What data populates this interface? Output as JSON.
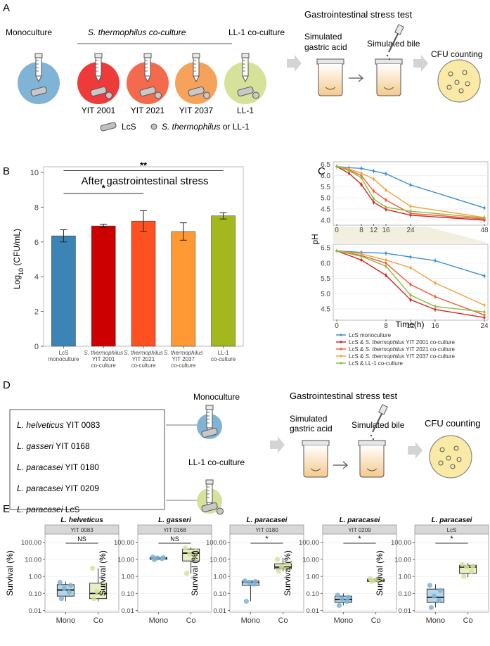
{
  "panel_letters": {
    "A": "A",
    "B": "B",
    "C": "C",
    "D": "D",
    "E": "E"
  },
  "colors": {
    "mono": "#7fb4d6",
    "yit2001": "#ef3a3a",
    "yit2021": "#f36a4c",
    "yit2037": "#f6a25a",
    "ll1": "#d6e29a",
    "bar_lcs": "#3d84b6",
    "bar_2001": "#cc0000",
    "bar_2021": "#ff5022",
    "bar_2037": "#ff9933",
    "bar_ll1": "#a3b81e",
    "line_mono": "#3b8fd0",
    "line_2001": "#d42020",
    "line_2021": "#f05a3a",
    "line_2037": "#f5a13a",
    "line_ll1": "#8cbc3c",
    "strip": "#d8d8d8",
    "arrow": "#c8c8c8"
  },
  "panel_a": {
    "monoculture": "Monoculture",
    "st_coculture": "S. thermophilus co-culture",
    "ll1_coculture": "LL-1 co-culture",
    "strains": [
      "YIT 2001",
      "YIT 2021",
      "YIT 2037",
      "LL-1"
    ],
    "legend_lcs": "LcS",
    "legend_st": "S. thermophilus",
    "legend_or": " or LL-1",
    "gi_test": "Gastrointestinal stress test",
    "gastric1": "Simulated",
    "gastric2": "gastric acid",
    "bile": "Simulated bile",
    "cfu": "CFU counting"
  },
  "chart_data": [
    {
      "type": "bar",
      "panel": "B",
      "title": "After gastrointestinal stress",
      "ylabel": "Log10 (CFU/mL)",
      "ylim": [
        0,
        10
      ],
      "yticks": [
        0,
        2,
        4,
        6,
        8,
        10
      ],
      "categories": [
        [
          "LcS",
          "monoculture"
        ],
        [
          "S. thermophilus",
          "YIT 2001",
          "co-culture"
        ],
        [
          "S. thermophilus",
          "YIT 2021",
          "co-culture"
        ],
        [
          "S. thermophilus",
          "YIT 2037",
          "co-culture"
        ],
        [
          "LL-1",
          "co-culture"
        ]
      ],
      "values": [
        6.35,
        6.92,
        7.2,
        6.6,
        7.5
      ],
      "errors": [
        0.35,
        0.1,
        0.6,
        0.5,
        0.18
      ],
      "significance": [
        {
          "from": 0,
          "to": 2,
          "label": "*"
        },
        {
          "from": 0,
          "to": 4,
          "label": "**"
        }
      ]
    },
    {
      "type": "line",
      "panel": "C",
      "ylabel": "pH",
      "xlabel": "Time(h)",
      "x": [
        0,
        4,
        8,
        12,
        16,
        24,
        48
      ],
      "top_xticks": [
        0,
        8,
        12,
        16,
        24,
        48
      ],
      "top_yticks": [
        "6.5",
        "6.0",
        "5.5",
        "5.0",
        "4.5",
        "4.0"
      ],
      "bottom_xticks": [
        0,
        8,
        12,
        16,
        24
      ],
      "bottom_yticks": [
        "6.5",
        "6.0",
        "5.5",
        "5.0",
        "4.5"
      ],
      "top_ylim": [
        3.9,
        6.55
      ],
      "bottom_ylim": [
        4.2,
        6.55
      ],
      "series": [
        {
          "name": "LcS monoculture",
          "values": [
            6.4,
            6.35,
            6.32,
            6.2,
            6.08,
            5.58,
            4.55
          ]
        },
        {
          "name": "LcS & S. thermophilus YIT 2001 co-culture",
          "values": [
            6.4,
            6.1,
            5.6,
            4.8,
            4.48,
            4.22,
            4.0
          ]
        },
        {
          "name": "LcS & S. thermophilus YIT 2021 co-culture",
          "values": [
            6.4,
            6.25,
            6.0,
            5.3,
            4.9,
            4.3,
            4.05
          ]
        },
        {
          "name": "LcS & S. thermophilus YIT 2037 co-culture",
          "values": [
            6.4,
            6.3,
            6.1,
            5.85,
            5.35,
            4.62,
            4.12
          ]
        },
        {
          "name": "LcS & LL-1 co-culture",
          "values": [
            6.4,
            6.22,
            5.9,
            4.95,
            4.58,
            4.4,
            4.1
          ]
        }
      ],
      "legend": [
        [
          "LcS monoculture"
        ],
        [
          "LcS & ",
          "S. thermophilus",
          " YIT 2001 co-culture"
        ],
        [
          "LcS & ",
          "S. thermophilus",
          " YIT 2021 co-culture"
        ],
        [
          "LcS & ",
          "S. thermophilus",
          " YIT 2037 co-culture"
        ],
        [
          "LcS & LL-1 co-culture"
        ]
      ]
    },
    {
      "type": "box",
      "panel": "E",
      "ylabel": "Survival (%)",
      "yticks": [
        "100.00",
        "10.00",
        "1.00",
        "0.10",
        "0.01"
      ],
      "xticks": [
        "Mono",
        "Co"
      ],
      "panels": [
        {
          "title": "L. helveticus",
          "strip": "YIT 0083",
          "sig": "NS",
          "mono": {
            "q1": 0.07,
            "median": 0.16,
            "q3": 0.33,
            "lo": 0.035,
            "hi": 0.5,
            "points": [
              0.05,
              0.12,
              0.2,
              0.3,
              0.45
            ]
          },
          "co": {
            "q1": 0.05,
            "median": 0.1,
            "q3": 0.4,
            "lo": 0.035,
            "hi": 3.0,
            "points": [
              0.05,
              0.1,
              0.13,
              0.35,
              3.0
            ]
          }
        },
        {
          "title": "L. gasseri",
          "strip": "YIT 0168",
          "sig": "NS",
          "mono": {
            "q1": 10.0,
            "median": 11.5,
            "q3": 13.0,
            "lo": 9.0,
            "hi": 14.0,
            "points": [
              9.5,
              11.0,
              12.0,
              12.5,
              13.5
            ]
          },
          "co": {
            "q1": 8.0,
            "median": 23.0,
            "q3": 40.0,
            "lo": 1.5,
            "hi": 50.0,
            "points": [
              1.5,
              12.0,
              20.0,
              30.0,
              45.0
            ]
          }
        },
        {
          "title": "L. paracasei",
          "strip": "YIT 0180",
          "sig": "*",
          "mono": {
            "q1": 0.3,
            "median": 0.45,
            "q3": 0.55,
            "lo": 0.035,
            "hi": 0.6,
            "points": [
              0.035,
              0.35,
              0.45,
              0.5,
              0.55
            ]
          },
          "co": {
            "q1": 2.8,
            "median": 3.5,
            "q3": 5.5,
            "lo": 2.0,
            "hi": 12.0,
            "points": [
              2.0,
              3.0,
              3.8,
              6.0,
              10.0
            ]
          }
        },
        {
          "title": "L. paracasei",
          "strip": "YIT 0209",
          "sig": "*",
          "mono": {
            "q1": 0.03,
            "median": 0.045,
            "q3": 0.07,
            "lo": 0.02,
            "hi": 0.1,
            "points": [
              0.02,
              0.035,
              0.05,
              0.06,
              0.08
            ]
          },
          "co": {
            "q1": 0.5,
            "median": 0.6,
            "q3": 0.7,
            "lo": 0.45,
            "hi": 0.8,
            "points": [
              0.5,
              0.55,
              0.6,
              0.65,
              0.75
            ]
          }
        },
        {
          "title": "L. paracasei",
          "strip": "LcS",
          "sig": "*",
          "mono": {
            "q1": 0.03,
            "median": 0.06,
            "q3": 0.18,
            "lo": 0.015,
            "hi": 0.35,
            "points": [
              0.015,
              0.04,
              0.07,
              0.15,
              0.3
            ]
          },
          "co": {
            "q1": 1.5,
            "median": 3.5,
            "q3": 4.5,
            "lo": 0.9,
            "hi": 6.0,
            "points": [
              1.0,
              2.0,
              3.5,
              4.0,
              5.0
            ]
          }
        }
      ]
    }
  ],
  "panel_d": {
    "strains": [
      [
        "L. helveticus",
        " YIT 0083"
      ],
      [
        "L. gasseri",
        " YIT 0168"
      ],
      [
        "L. paracasei",
        " YIT 0180"
      ],
      [
        "L. paracasei",
        " YIT 0209"
      ],
      [
        "L. paracasei",
        " LcS"
      ]
    ],
    "monoculture": "Monoculture",
    "ll1_coculture": "LL-1 co-culture",
    "gi_test": "Gastrointestinal stress test",
    "gastric1": "Simulated",
    "gastric2": "gastric acid",
    "bile": "Simulated bile",
    "cfu": "CFU counting"
  }
}
